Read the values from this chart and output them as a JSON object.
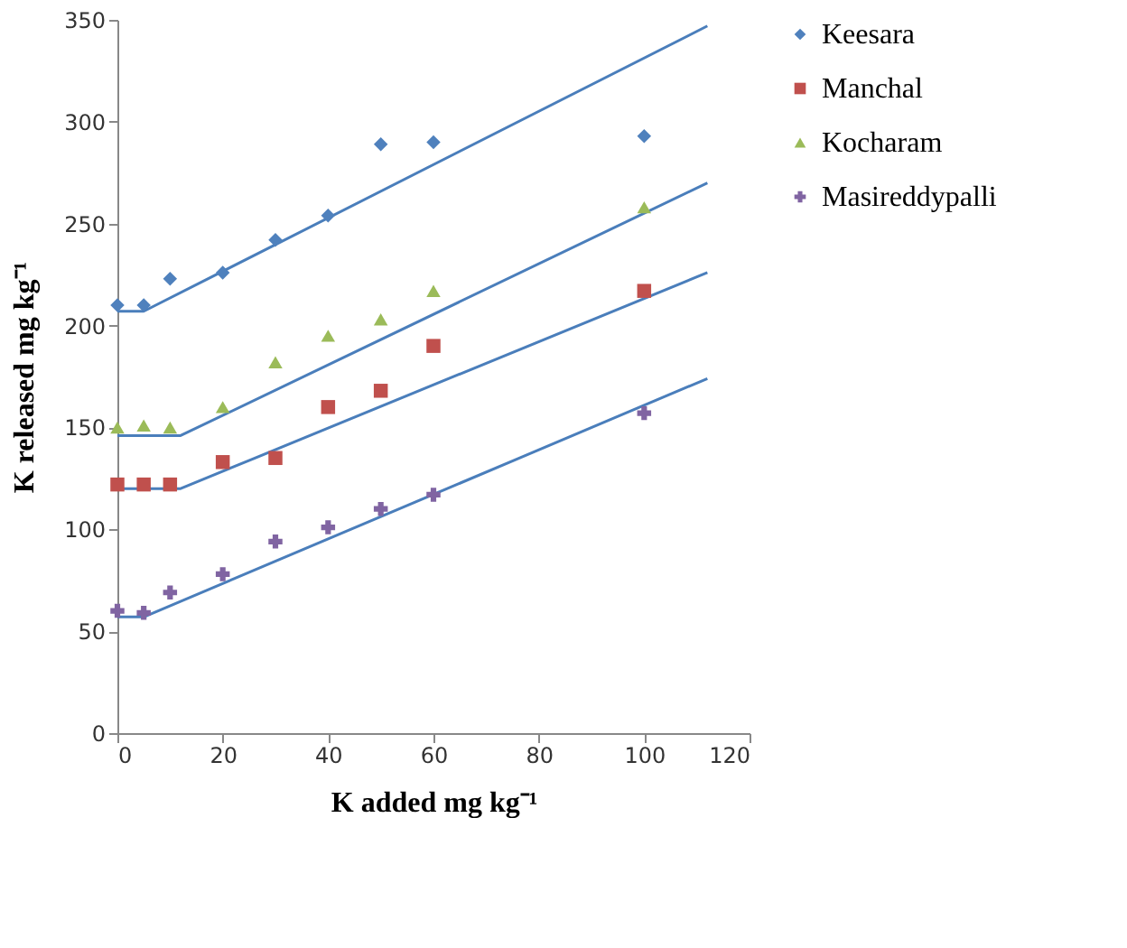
{
  "chart_data": {
    "type": "scatter",
    "xlabel": "K added mg kg⁻¹",
    "ylabel": "K released mg kg⁻¹",
    "x": [
      0,
      5,
      10,
      20,
      30,
      40,
      50,
      60,
      100
    ],
    "series": [
      {
        "name": "Keesara",
        "color": "#4f81bd",
        "marker": "diamond",
        "values": [
          210,
          210,
          223,
          226,
          242,
          254,
          289,
          290,
          293
        ]
      },
      {
        "name": "Manchal",
        "color": "#c0504d",
        "marker": "square",
        "values": [
          122,
          122,
          122,
          133,
          135,
          160,
          168,
          190,
          217
        ]
      },
      {
        "name": "Kocharam",
        "color": "#9bbb59",
        "marker": "triangle",
        "values": [
          150,
          151,
          150,
          160,
          182,
          195,
          203,
          217,
          258
        ]
      },
      {
        "name": "Masireddypalli",
        "color": "#8064a2",
        "marker": "cross",
        "values": [
          60,
          59,
          69,
          78,
          94,
          101,
          110,
          117,
          157
        ]
      },
      {
        "type": "line",
        "color": "#4a7ebb",
        "x": [
          0,
          5,
          112
        ],
        "values": [
          207,
          207,
          347
        ]
      },
      {
        "type": "line",
        "color": "#4a7ebb",
        "x": [
          0,
          12,
          112
        ],
        "values": [
          146,
          146,
          270
        ]
      },
      {
        "type": "line",
        "color": "#4a7ebb",
        "x": [
          0,
          12,
          112
        ],
        "values": [
          120,
          120,
          226
        ]
      },
      {
        "type": "line",
        "color": "#4a7ebb",
        "x": [
          0,
          5,
          112
        ],
        "values": [
          57,
          57,
          174
        ]
      }
    ],
    "xlim": [
      0,
      120
    ],
    "xticks": [
      0,
      20,
      40,
      60,
      80,
      100,
      120
    ],
    "ylim": [
      0,
      350
    ],
    "yticks": [
      0,
      50,
      100,
      150,
      200,
      250,
      300,
      350
    ],
    "grid": false,
    "legend": "right"
  }
}
